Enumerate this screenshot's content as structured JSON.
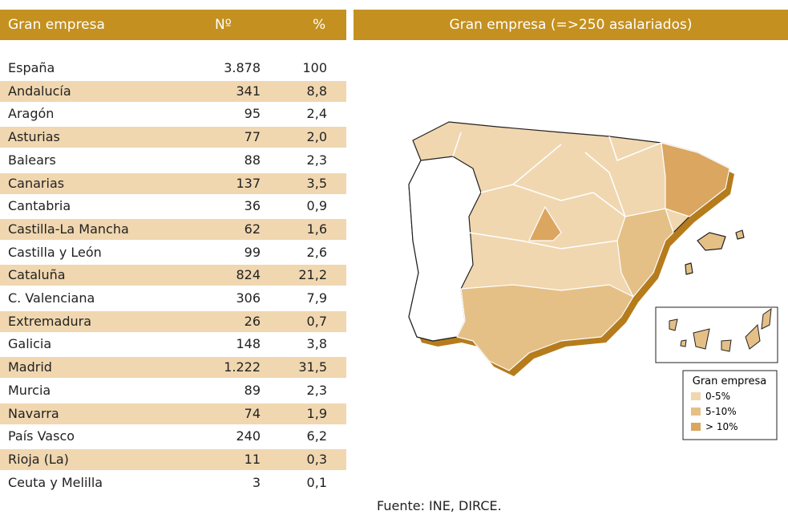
{
  "header": {
    "col_name": "Gran empresa",
    "col_n": "Nº",
    "col_pct": "%",
    "map_title": "Gran empresa (=>250 asalariados)"
  },
  "table": {
    "rows": [
      [
        "España",
        "3.878",
        "100"
      ],
      [
        "Andalucía",
        "341",
        "8,8"
      ],
      [
        "Aragón",
        "95",
        "2,4"
      ],
      [
        "Asturias",
        "77",
        "2,0"
      ],
      [
        "Balears",
        "88",
        "2,3"
      ],
      [
        "Canarias",
        "137",
        "3,5"
      ],
      [
        "Cantabria",
        "36",
        "0,9"
      ],
      [
        "Castilla-La Mancha",
        "62",
        "1,6"
      ],
      [
        "Castilla y León",
        "99",
        "2,6"
      ],
      [
        "Cataluña",
        "824",
        "21,2"
      ],
      [
        "C. Valenciana",
        "306",
        "7,9"
      ],
      [
        "Extremadura",
        "26",
        "0,7"
      ],
      [
        "Galicia",
        "148",
        "3,8"
      ],
      [
        "Madrid",
        "1.222",
        "31,5"
      ],
      [
        "Murcia",
        "89",
        "2,3"
      ],
      [
        "Navarra",
        "74",
        "1,9"
      ],
      [
        "País Vasco",
        "240",
        "6,2"
      ],
      [
        "Rioja (La)",
        "11",
        "0,3"
      ],
      [
        "Ceuta y Melilla",
        "3",
        "0,1"
      ]
    ]
  },
  "legend": {
    "title": "Gran empresa",
    "items": [
      "0-5%",
      "5-10%",
      "> 10%"
    ]
  },
  "source": "Fuente: INE, DIRCE."
}
